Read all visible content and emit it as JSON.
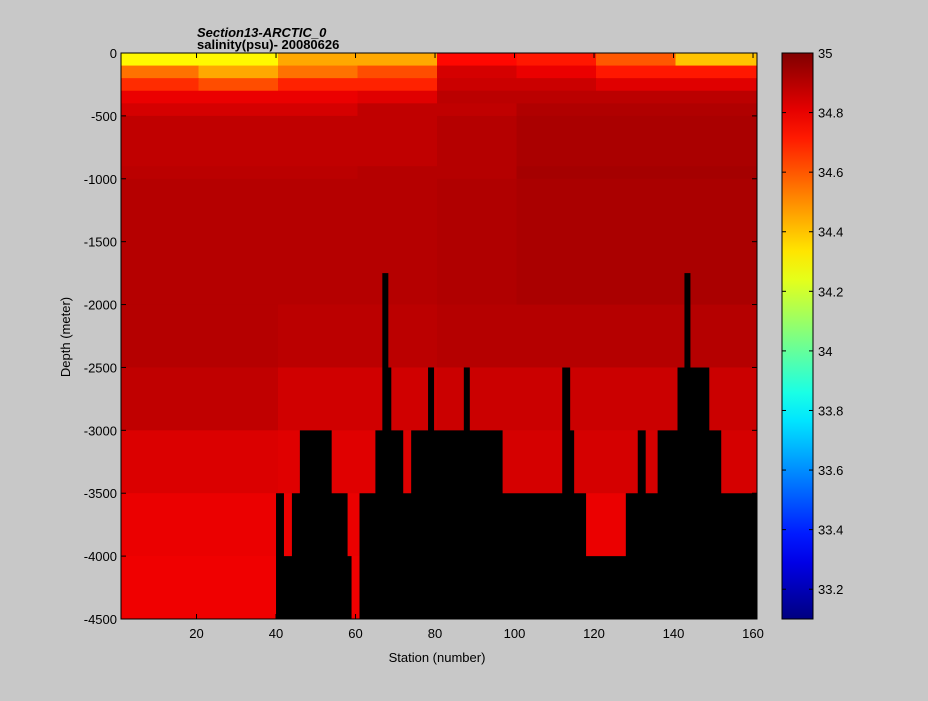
{
  "chart_data": {
    "type": "heatmap",
    "title": "Section13-ARCTIC_0",
    "subtitle": "salinity(psu)- 20080626",
    "xlabel": "Station (number)",
    "ylabel": "Depth (meter)",
    "xlim": [
      1,
      161
    ],
    "ylim": [
      -4500,
      0
    ],
    "x_ticks": [
      20,
      40,
      60,
      80,
      100,
      120,
      140,
      160
    ],
    "x_tick_labels": [
      "20",
      "40",
      "60",
      "80",
      "100",
      "120",
      "140",
      "160"
    ],
    "y_ticks": [
      0,
      -500,
      -1000,
      -1500,
      -2000,
      -2500,
      -3000,
      -3500,
      -4000,
      -4500
    ],
    "y_tick_labels": [
      "0",
      "-500",
      "-1000",
      "-1500",
      "-2000",
      "-2500",
      "-3000",
      "-3500",
      "-4000",
      "-4500"
    ],
    "colorbar": {
      "min": 33.1,
      "max": 35.0,
      "ticks": [
        33.2,
        33.4,
        33.6,
        33.8,
        34,
        34.2,
        34.4,
        34.6,
        34.8,
        35
      ],
      "tick_labels": [
        "33.2",
        "33.4",
        "33.6",
        "33.8",
        "34",
        "34.2",
        "34.4",
        "34.6",
        "34.8",
        "35"
      ],
      "colormap": "jet"
    },
    "grid": false,
    "missing_color": "#000000",
    "layer_bounds_m": [
      0,
      -100,
      -200,
      -300,
      -400,
      -500,
      -900,
      -1000,
      -2000,
      -2500,
      -3000,
      -3500,
      -4000,
      -4500
    ],
    "salinity_layers": [
      {
        "segments": [
          [
            1,
            40,
            34.3
          ],
          [
            41,
            80,
            34.45
          ],
          [
            81,
            100,
            34.75
          ],
          [
            101,
            120,
            34.72
          ],
          [
            121,
            140,
            34.6
          ],
          [
            141,
            161,
            34.4
          ]
        ]
      },
      {
        "segments": [
          [
            1,
            20,
            34.55
          ],
          [
            21,
            40,
            34.45
          ],
          [
            41,
            60,
            34.55
          ],
          [
            61,
            80,
            34.62
          ],
          [
            81,
            100,
            34.84
          ],
          [
            101,
            120,
            34.8
          ],
          [
            121,
            161,
            34.72
          ]
        ]
      },
      {
        "segments": [
          [
            1,
            20,
            34.68
          ],
          [
            21,
            40,
            34.62
          ],
          [
            41,
            80,
            34.7
          ],
          [
            81,
            120,
            34.86
          ],
          [
            121,
            161,
            34.82
          ]
        ]
      },
      {
        "segments": [
          [
            1,
            60,
            34.8
          ],
          [
            61,
            80,
            34.82
          ],
          [
            81,
            161,
            34.89
          ]
        ]
      },
      {
        "segments": [
          [
            1,
            60,
            34.84
          ],
          [
            61,
            100,
            34.88
          ],
          [
            101,
            161,
            34.91
          ]
        ]
      },
      {
        "segments": [
          [
            1,
            80,
            34.88
          ],
          [
            81,
            100,
            34.9
          ],
          [
            101,
            161,
            34.92
          ]
        ]
      },
      {
        "segments": [
          [
            1,
            60,
            34.89
          ],
          [
            61,
            100,
            34.9
          ],
          [
            101,
            161,
            34.93
          ]
        ]
      },
      {
        "segments": [
          [
            1,
            80,
            34.9
          ],
          [
            81,
            100,
            34.91
          ],
          [
            101,
            161,
            34.92
          ]
        ]
      },
      {
        "segments": [
          [
            1,
            40,
            34.9
          ],
          [
            41,
            80,
            34.89
          ],
          [
            81,
            161,
            34.9
          ]
        ]
      },
      {
        "segments": [
          [
            1,
            40,
            34.88
          ],
          [
            41,
            80,
            34.85
          ],
          [
            81,
            161,
            34.86
          ]
        ]
      },
      {
        "segments": [
          [
            1,
            40,
            34.83
          ],
          [
            41,
            80,
            34.82
          ],
          [
            81,
            161,
            34.84
          ]
        ]
      },
      {
        "segments": [
          [
            1,
            161,
            34.8
          ]
        ]
      },
      {
        "segments": [
          [
            1,
            161,
            34.79
          ]
        ]
      }
    ],
    "bottom_depth_m": [
      [
        1,
        -4500
      ],
      [
        39,
        -4500
      ],
      [
        40,
        -3500
      ],
      [
        41,
        -3500
      ],
      [
        42,
        -4000
      ],
      [
        44,
        -3500
      ],
      [
        45,
        -3500
      ],
      [
        46,
        -3000
      ],
      [
        53,
        -3000
      ],
      [
        54,
        -3500
      ],
      [
        57,
        -3500
      ],
      [
        58,
        -4000
      ],
      [
        59,
        -4500
      ],
      [
        60,
        -4500
      ],
      [
        61,
        -3500
      ],
      [
        64,
        -3500
      ],
      [
        65,
        -3000
      ],
      [
        67,
        -3000
      ],
      [
        68,
        -2500
      ],
      [
        69,
        -3000
      ],
      [
        71,
        -3000
      ],
      [
        72,
        -3500
      ],
      [
        73,
        -3500
      ],
      [
        74,
        -3000
      ],
      [
        79,
        -3000
      ],
      [
        80,
        -3000
      ],
      [
        86,
        -3000
      ],
      [
        87,
        -3000
      ],
      [
        96,
        -3000
      ],
      [
        97,
        -3500
      ],
      [
        111,
        -3500
      ],
      [
        112,
        -2500
      ],
      [
        114,
        -3000
      ],
      [
        115,
        -3500
      ],
      [
        117,
        -3500
      ],
      [
        118,
        -4000
      ],
      [
        127,
        -4000
      ],
      [
        128,
        -3500
      ],
      [
        130,
        -3500
      ],
      [
        131,
        -3000
      ],
      [
        133,
        -3500
      ],
      [
        136,
        -3000
      ],
      [
        140,
        -3000
      ],
      [
        141,
        -2500
      ],
      [
        148,
        -2500
      ],
      [
        149,
        -3000
      ],
      [
        151,
        -3000
      ],
      [
        152,
        -3500
      ],
      [
        161,
        -3500
      ]
    ],
    "seamount_peaks": [
      {
        "station": 67.5,
        "depth_m": -1750
      },
      {
        "station": 79,
        "depth_m": -2500
      },
      {
        "station": 88,
        "depth_m": -2500
      },
      {
        "station": 143.5,
        "depth_m": -1750
      }
    ]
  }
}
